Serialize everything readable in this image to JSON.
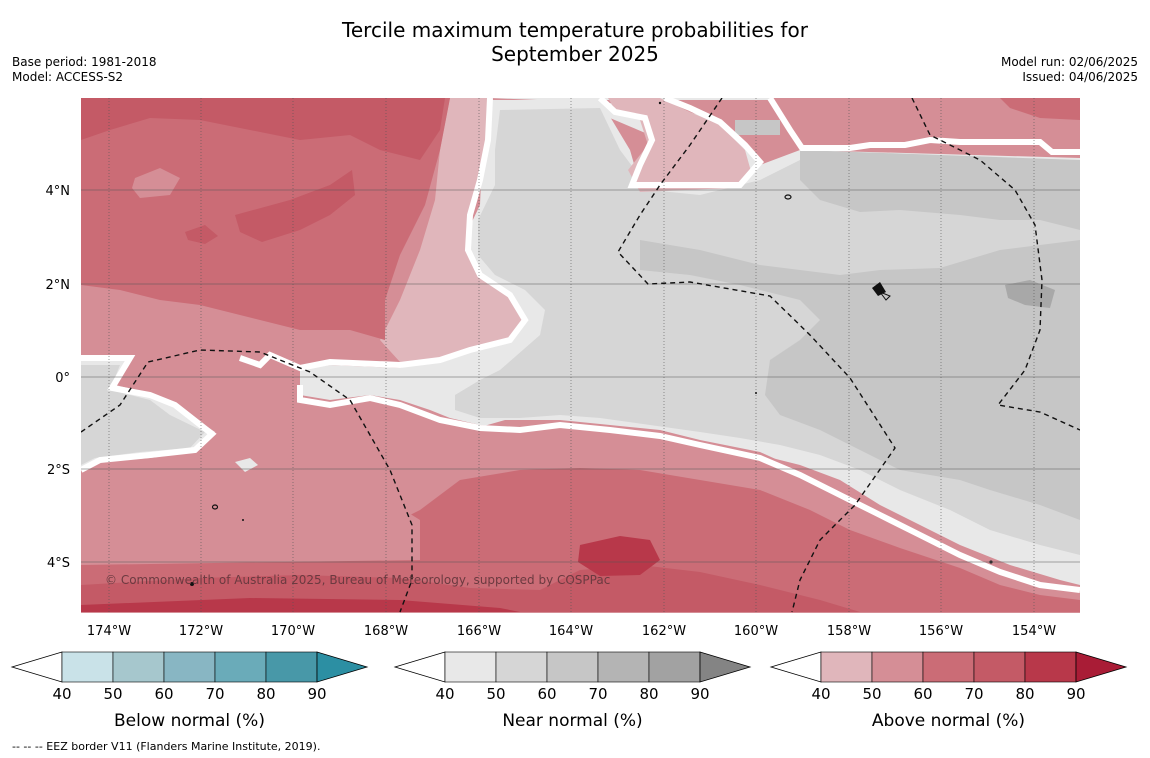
{
  "title": {
    "line1": "Tercile maximum temperature probabilities for",
    "line2": "September 2025"
  },
  "meta_left": {
    "base_period": "Base period: 1981-2018",
    "model": "Model: ACCESS-S2"
  },
  "meta_right": {
    "model_run": "Model run: 02/06/2025",
    "issued": "Issued: 04/06/2025"
  },
  "map": {
    "lat_labels": [
      "4°N",
      "2°N",
      "0°",
      "2°S",
      "4°S"
    ],
    "lon_labels": [
      "174°W",
      "172°W",
      "170°W",
      "168°W",
      "166°W",
      "164°W",
      "162°W",
      "160°W",
      "158°W",
      "156°W",
      "154°W"
    ],
    "copyright": "© Commonwealth of Australia 2025, Bureau of Meteorology, supported by COSPPac",
    "colors": {
      "above": [
        "#e0b6bb",
        "#d58e96",
        "#cb6c76",
        "#c45a66",
        "#b8384a",
        "#a91c36"
      ],
      "near": [
        "#e8e8e8",
        "#d6d6d6",
        "#c6c6c6",
        "#b4b4b4",
        "#a2a2a2",
        "#848484"
      ],
      "below": [
        "#c9e2e8",
        "#a6c7cd",
        "#88b6c3",
        "#6aabb9",
        "#4898a8",
        "#2c8fa3"
      ]
    }
  },
  "colorbars": [
    {
      "id": "below",
      "label": "Below normal (%)",
      "ticks": [
        "40",
        "50",
        "60",
        "70",
        "80",
        "90"
      ]
    },
    {
      "id": "near",
      "label": "Near normal (%)",
      "ticks": [
        "40",
        "50",
        "60",
        "70",
        "80",
        "90"
      ]
    },
    {
      "id": "above",
      "label": "Above normal (%)",
      "ticks": [
        "40",
        "50",
        "60",
        "70",
        "80",
        "90"
      ]
    }
  ],
  "footnote": "-- -- -- EEZ border V11 (Flanders Marine Institute, 2019)."
}
